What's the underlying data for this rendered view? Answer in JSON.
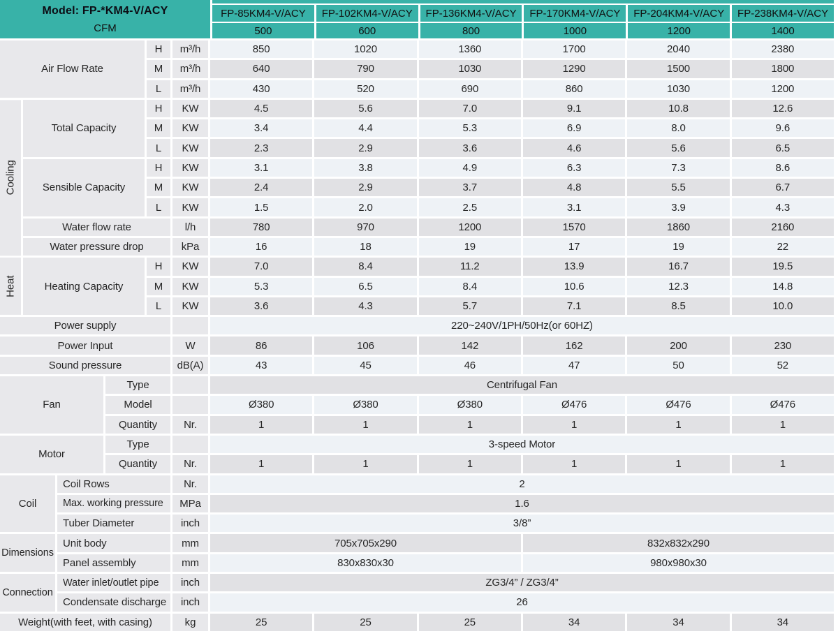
{
  "colors": {
    "teal": "#38b2a8",
    "row_light": "#eef2f6",
    "row_gray": "#e1e1e4",
    "label_bg": "#e8e8eb"
  },
  "header": {
    "model_title": "Model: FP-*KM4-V/ACY",
    "cfm_label": "CFM",
    "models": [
      "FP-85KM4-V/ACY",
      "FP-102KM4-V/ACY",
      "FP-136KM4-V/ACY",
      "FP-170KM4-V/ACY",
      "FP-204KM4-V/ACY",
      "FP-238KM4-V/ACY"
    ],
    "cfm": [
      "500",
      "600",
      "800",
      "1000",
      "1200",
      "1400"
    ]
  },
  "air_flow": {
    "label": "Air Flow Rate",
    "unit": "m³/h",
    "speeds": [
      "H",
      "M",
      "L"
    ],
    "h": [
      "850",
      "1020",
      "1360",
      "1700",
      "2040",
      "2380"
    ],
    "m": [
      "640",
      "790",
      "1030",
      "1290",
      "1500",
      "1800"
    ],
    "l": [
      "430",
      "520",
      "690",
      "860",
      "1030",
      "1200"
    ]
  },
  "cooling": {
    "category": "Cooling",
    "total": {
      "label": "Total Capacity",
      "unit": "KW",
      "h": [
        "4.5",
        "5.6",
        "7.0",
        "9.1",
        "10.8",
        "12.6"
      ],
      "m": [
        "3.4",
        "4.4",
        "5.3",
        "6.9",
        "8.0",
        "9.6"
      ],
      "l": [
        "2.3",
        "2.9",
        "3.6",
        "4.6",
        "5.6",
        "6.5"
      ]
    },
    "sensible": {
      "label": "Sensible Capacity",
      "unit": "KW",
      "h": [
        "3.1",
        "3.8",
        "4.9",
        "6.3",
        "7.3",
        "8.6"
      ],
      "m": [
        "2.4",
        "2.9",
        "3.7",
        "4.8",
        "5.5",
        "6.7"
      ],
      "l": [
        "1.5",
        "2.0",
        "2.5",
        "3.1",
        "3.9",
        "4.3"
      ]
    },
    "water_flow": {
      "label": "Water flow rate",
      "unit": "l/h",
      "values": [
        "780",
        "970",
        "1200",
        "1570",
        "1860",
        "2160"
      ]
    },
    "water_drop": {
      "label": "Water pressure drop",
      "unit": "kPa",
      "values": [
        "16",
        "18",
        "19",
        "17",
        "19",
        "22"
      ]
    }
  },
  "heat": {
    "category": "Heat",
    "heating": {
      "label": "Heating Capacity",
      "unit": "KW",
      "h": [
        "7.0",
        "8.4",
        "11.2",
        "13.9",
        "16.7",
        "19.5"
      ],
      "m": [
        "5.3",
        "6.5",
        "8.4",
        "10.6",
        "12.3",
        "14.8"
      ],
      "l": [
        "3.6",
        "4.3",
        "5.7",
        "7.1",
        "8.5",
        "10.0"
      ]
    }
  },
  "power_supply": {
    "label": "Power supply",
    "value": "220~240V/1PH/50Hz(or 60HZ)"
  },
  "power_input": {
    "label": "Power Input",
    "unit": "W",
    "values": [
      "86",
      "106",
      "142",
      "162",
      "200",
      "230"
    ]
  },
  "sound": {
    "label": "Sound pressure",
    "unit": "dB(A)",
    "values": [
      "43",
      "45",
      "46",
      "47",
      "50",
      "52"
    ]
  },
  "fan": {
    "label": "Fan",
    "type_label": "Type",
    "type_value": "Centrifugal Fan",
    "model_label": "Model",
    "models": [
      "Ø380",
      "Ø380",
      "Ø380",
      "Ø476",
      "Ø476",
      "Ø476"
    ],
    "qty_label": "Quantity",
    "qty_unit": "Nr.",
    "qty": [
      "1",
      "1",
      "1",
      "1",
      "1",
      "1"
    ]
  },
  "motor": {
    "label": "Motor",
    "type_label": "Type",
    "type_value": "3-speed Motor",
    "qty_label": "Quantity",
    "qty_unit": "Nr.",
    "qty": [
      "1",
      "1",
      "1",
      "1",
      "1",
      "1"
    ]
  },
  "coil": {
    "category": "Coil",
    "rows": [
      {
        "label": "Coil Rows",
        "unit": "Nr.",
        "value": "2"
      },
      {
        "label": "Max. working pressure",
        "unit": "MPa",
        "value": "1.6"
      },
      {
        "label": "Tuber Diameter",
        "unit": "inch",
        "value": "3/8”"
      }
    ]
  },
  "dimensions": {
    "category": "Dimensions",
    "rows": [
      {
        "label": "Unit body",
        "unit": "mm",
        "left": "705x705x290",
        "right": "832x832x290"
      },
      {
        "label": "Panel assembly",
        "unit": "mm",
        "left": "830x830x30",
        "right": "980x980x30"
      }
    ]
  },
  "connection": {
    "category": "Connection",
    "rows": [
      {
        "label": "Water inlet/outlet pipe",
        "unit": "inch",
        "value": "ZG3/4” / ZG3/4”"
      },
      {
        "label": "Condensate discharge",
        "unit": "inch",
        "value": "26"
      }
    ]
  },
  "weight": {
    "label": "Weight(with feet, with casing)",
    "unit": "kg",
    "values": [
      "25",
      "25",
      "25",
      "34",
      "34",
      "34"
    ]
  }
}
